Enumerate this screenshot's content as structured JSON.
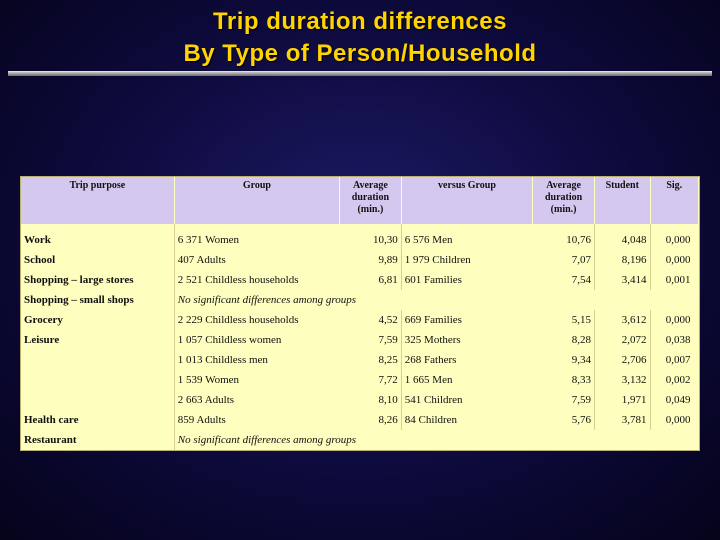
{
  "title": {
    "line1": "Trip duration differences",
    "line2": "By Type of Person/Household"
  },
  "table": {
    "headers": {
      "trip_purpose": "Trip purpose",
      "group": "Group",
      "avg_duration_1": "Average duration (min.)",
      "versus_group": "versus Group",
      "avg_duration_2": "Average duration (min.)",
      "student": "Student",
      "sig": "Sig."
    },
    "rows": [
      {
        "purpose": "Work",
        "group": "6 371 Women",
        "dur1": "10,30",
        "vs": "6 576 Men",
        "dur2": "10,76",
        "student": "4,048",
        "sig": "0,000"
      },
      {
        "purpose": "School",
        "group": "407 Adults",
        "dur1": "9,89",
        "vs": "1 979 Children",
        "dur2": "7,07",
        "student": "8,196",
        "sig": "0,000"
      },
      {
        "purpose": "Shopping – large stores",
        "group": "2 521 Childless households",
        "dur1": "6,81",
        "vs": "601 Families",
        "dur2": "7,54",
        "student": "3,414",
        "sig": "0,001"
      },
      {
        "purpose": "Shopping – small shops",
        "nosig": "No significant differences among groups"
      },
      {
        "purpose": "Grocery",
        "group": "2 229 Childless households",
        "dur1": "4,52",
        "vs": "669 Families",
        "dur2": "5,15",
        "student": "3,612",
        "sig": "0,000"
      },
      {
        "purpose": "Leisure",
        "group": "1 057 Childless women",
        "dur1": "7,59",
        "vs": "325 Mothers",
        "dur2": "8,28",
        "student": "2,072",
        "sig": "0,038"
      },
      {
        "purpose": "",
        "group": "1 013 Childless men",
        "dur1": "8,25",
        "vs": "268 Fathers",
        "dur2": "9,34",
        "student": "2,706",
        "sig": "0,007"
      },
      {
        "purpose": "",
        "group": "1 539 Women",
        "dur1": "7,72",
        "vs": "1 665 Men",
        "dur2": "8,33",
        "student": "3,132",
        "sig": "0,002"
      },
      {
        "purpose": "",
        "group": "2 663 Adults",
        "dur1": "8,10",
        "vs": "541 Children",
        "dur2": "7,59",
        "student": "1,971",
        "sig": "0,049"
      },
      {
        "purpose": "Health care",
        "group": "859 Adults",
        "dur1": "8,26",
        "vs": "84 Children",
        "dur2": "5,76",
        "student": "3,781",
        "sig": "0,000"
      },
      {
        "purpose": "Restaurant",
        "nosig": "No significant differences among groups"
      }
    ]
  },
  "colors": {
    "title": "#ffd400",
    "header_bg": "#d4c8ee",
    "table_bg": "#fefebe",
    "background": "#0d0a3c"
  }
}
